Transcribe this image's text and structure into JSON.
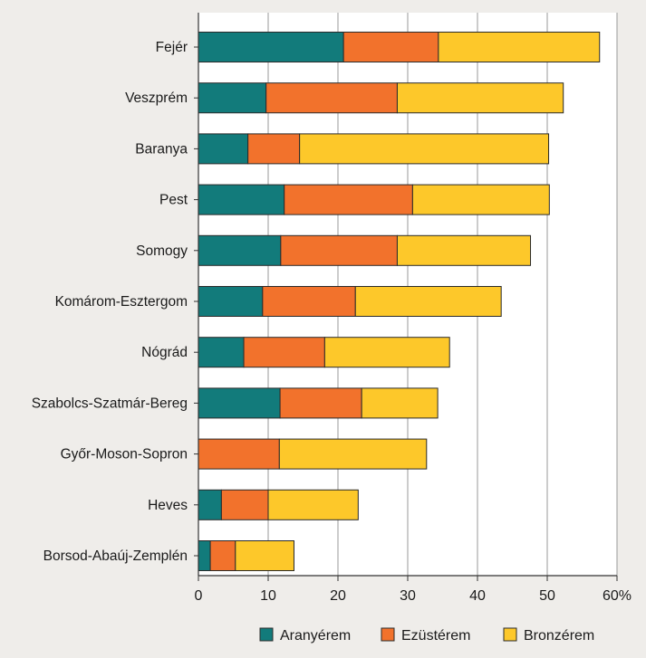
{
  "colors": {
    "background": "#efedea",
    "plot_background": "#ffffff",
    "gold": "#127b7b",
    "silver": "#f2722c",
    "bronze": "#fdc82a",
    "grid": "#9a9a9a",
    "axis": "#333333"
  },
  "chart_data": {
    "type": "bar",
    "orientation": "horizontal",
    "stacked": true,
    "categories": [
      "Fejér",
      "Veszprém",
      "Baranya",
      "Pest",
      "Somogy",
      "Komárom-Esztergom",
      "Nógrád",
      "Szabolcs-Szatmár-Bereg",
      "Győr-Moson-Sopron",
      "Heves",
      "Borsod-Abaúj-Zemplén"
    ],
    "series": [
      {
        "name": "Aranyérem",
        "color": "#127b7b",
        "values": [
          20.8,
          9.7,
          7.1,
          12.3,
          11.8,
          9.2,
          6.5,
          11.7,
          0,
          3.3,
          1.7
        ]
      },
      {
        "name": "Ezüstérem",
        "color": "#f2722c",
        "values": [
          13.6,
          18.8,
          7.4,
          18.4,
          16.7,
          13.3,
          11.6,
          11.7,
          11.6,
          6.7,
          3.6
        ]
      },
      {
        "name": "Bronzérem",
        "color": "#fdc82a",
        "values": [
          23.1,
          23.8,
          35.7,
          19.6,
          19.1,
          20.9,
          17.9,
          10.9,
          21.1,
          12.9,
          8.4
        ]
      }
    ],
    "x_ticks": [
      "0",
      "10",
      "20",
      "30",
      "40",
      "50",
      "60%"
    ],
    "xlim": [
      0,
      60
    ],
    "grid": true,
    "legend": "bottom"
  }
}
